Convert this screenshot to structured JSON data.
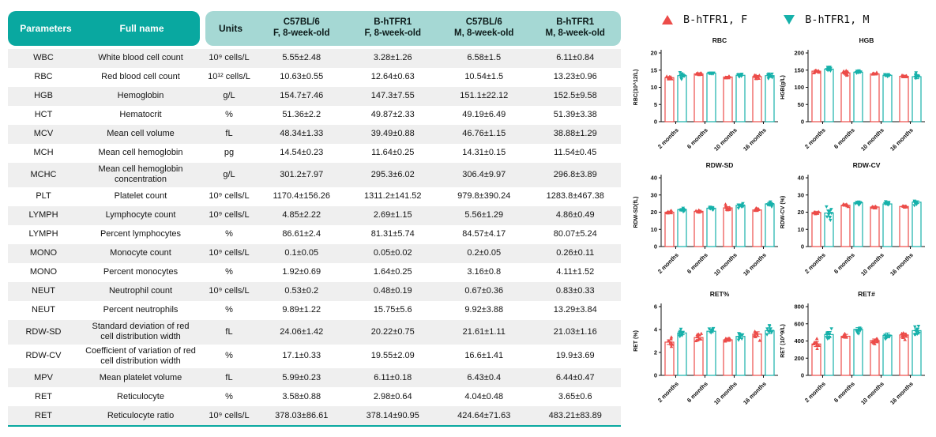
{
  "colors": {
    "header_dark_teal": "#09a8a0",
    "header_light_teal": "#a5d8d4",
    "row_stripe": "#efefef",
    "series_female_red": "#ec4c49",
    "series_male_teal": "#16b1aa"
  },
  "table": {
    "headers": {
      "parameters": "Parameters",
      "full_name": "Full name",
      "units": "Units",
      "group1": "C57BL/6\nF, 8-week-old",
      "group2": "B-hTFR1\nF, 8-week-old",
      "group3": "C57BL/6\nM, 8-week-old",
      "group4": "B-hTFR1\nM, 8-week-old"
    },
    "rows": [
      {
        "param": "WBC",
        "full": "White blood cell count",
        "units": "10⁹ cells/L",
        "values": [
          "5.55±2.48",
          "3.28±1.26",
          "6.58±1.5",
          "6.11±0.84"
        ]
      },
      {
        "param": "RBC",
        "full": "Red blood cell count",
        "units": "10¹² cells/L",
        "values": [
          "10.63±0.55",
          "12.64±0.63",
          "10.54±1.5",
          "13.23±0.96"
        ]
      },
      {
        "param": "HGB",
        "full": "Hemoglobin",
        "units": "g/L",
        "values": [
          "154.7±7.46",
          "147.3±7.55",
          "151.1±22.12",
          "152.5±9.58"
        ]
      },
      {
        "param": "HCT",
        "full": "Hematocrit",
        "units": "%",
        "values": [
          "51.36±2.2",
          "49.87±2.33",
          "49.19±6.49",
          "51.39±3.38"
        ]
      },
      {
        "param": "MCV",
        "full": "Mean cell volume",
        "units": "fL",
        "values": [
          "48.34±1.33",
          "39.49±0.88",
          "46.76±1.15",
          "38.88±1.29"
        ]
      },
      {
        "param": "MCH",
        "full": "Mean cell hemoglobin",
        "units": "pg",
        "values": [
          "14.54±0.23",
          "11.64±0.25",
          "14.31±0.15",
          "11.54±0.45"
        ]
      },
      {
        "param": "MCHC",
        "full": "Mean cell hemoglobin concentration",
        "units": "g/L",
        "values": [
          "301.2±7.97",
          "295.3±6.02",
          "306.4±9.97",
          "296.8±3.89"
        ]
      },
      {
        "param": "PLT",
        "full": "Platelet count",
        "units": "10⁹ cells/L",
        "values": [
          "1170.4±156.26",
          "1311.2±141.52",
          "979.8±390.24",
          "1283.8±467.38"
        ]
      },
      {
        "param": "LYMPH",
        "full": "Lymphocyte count",
        "units": "10⁹ cells/L",
        "values": [
          "4.85±2.22",
          "2.69±1.15",
          "5.56±1.29",
          "4.86±0.49"
        ]
      },
      {
        "param": "LYMPH",
        "full": "Percent lymphocytes",
        "units": "%",
        "values": [
          "86.61±2.4",
          "81.31±5.74",
          "84.57±4.17",
          "80.07±5.24"
        ]
      },
      {
        "param": "MONO",
        "full": "Monocyte count",
        "units": "10⁹ cells/L",
        "values": [
          "0.1±0.05",
          "0.05±0.02",
          "0.2±0.05",
          "0.26±0.11"
        ]
      },
      {
        "param": "MONO",
        "full": "Percent monocytes",
        "units": "%",
        "values": [
          "1.92±0.69",
          "1.64±0.25",
          "3.16±0.8",
          "4.11±1.52"
        ]
      },
      {
        "param": "NEUT",
        "full": "Neutrophil count",
        "units": "10⁹ cells/L",
        "values": [
          "0.53±0.2",
          "0.48±0.19",
          "0.67±0.36",
          "0.83±0.33"
        ]
      },
      {
        "param": "NEUT",
        "full": "Percent neutrophils",
        "units": "%",
        "values": [
          "9.89±1.22",
          "15.75±5.6",
          "9.92±3.88",
          "13.29±3.84"
        ]
      },
      {
        "param": "RDW-SD",
        "full": "Standard deviation of red cell distribution width",
        "units": "fL",
        "values": [
          "24.06±1.42",
          "20.22±0.75",
          "21.61±1.11",
          "21.03±1.16"
        ]
      },
      {
        "param": "RDW-CV",
        "full": "Coefficient of variation of red cell distribution width",
        "units": "%",
        "values": [
          "17.1±0.33",
          "19.55±2.09",
          "16.6±1.41",
          "19.9±3.69"
        ]
      },
      {
        "param": "MPV",
        "full": "Mean platelet volume",
        "units": "fL",
        "values": [
          "5.99±0.23",
          "6.11±0.18",
          "6.43±0.4",
          "6.44±0.47"
        ]
      },
      {
        "param": "RET",
        "full": "Reticulocyte",
        "units": "%",
        "values": [
          "3.58±0.88",
          "2.98±0.64",
          "4.04±0.48",
          "3.65±0.6"
        ]
      },
      {
        "param": "RET",
        "full": "Reticulocyte ratio",
        "units": "10⁹ cells/L",
        "values": [
          "378.03±86.61",
          "378.14±90.95",
          "424.64±71.63",
          "483.21±83.89"
        ]
      }
    ]
  },
  "legend": {
    "items": [
      {
        "label": "B-hTFR1, F",
        "marker": "triangle-up",
        "color": "#ec4c49"
      },
      {
        "label": "B-hTFR1, M",
        "marker": "triangle-down",
        "color": "#16b1aa"
      }
    ]
  },
  "chart_data": [
    {
      "type": "bar",
      "title": "RBC",
      "ylabel": "RBC(10^12/L)",
      "ylim": [
        0,
        20
      ],
      "yticks": [
        0,
        5,
        10,
        15,
        20
      ],
      "categories": [
        "2 months",
        "6 months",
        "10 months",
        "16 months"
      ],
      "legend_position": "top",
      "grid": false,
      "series": [
        {
          "name": "B-hTFR1, F",
          "color": "#ec4c49",
          "marker": "triangle-up",
          "means": [
            12.8,
            13.9,
            13.0,
            13.1
          ],
          "errors": [
            0.25,
            0.3,
            0.2,
            0.35
          ]
        },
        {
          "name": "B-hTFR1, M",
          "color": "#16b1aa",
          "marker": "triangle-down",
          "means": [
            13.4,
            14.1,
            13.5,
            13.4
          ],
          "errors": [
            0.4,
            0.15,
            0.2,
            0.5
          ]
        }
      ]
    },
    {
      "type": "bar",
      "title": "HGB",
      "ylabel": "HGB(g/L)",
      "ylim": [
        0,
        200
      ],
      "yticks": [
        0,
        50,
        100,
        150,
        200
      ],
      "categories": [
        "2 months",
        "6 months",
        "10 months",
        "16 months"
      ],
      "legend_position": "top",
      "grid": false,
      "series": [
        {
          "name": "B-hTFR1, F",
          "color": "#ec4c49",
          "marker": "triangle-up",
          "means": [
            147,
            142,
            139,
            132
          ],
          "errors": [
            3,
            4,
            2,
            3
          ]
        },
        {
          "name": "B-hTFR1, M",
          "color": "#16b1aa",
          "marker": "triangle-down",
          "means": [
            153,
            144,
            135,
            131
          ],
          "errors": [
            4,
            3,
            2,
            6
          ]
        }
      ]
    },
    {
      "type": "bar",
      "title": "RDW-SD",
      "ylabel": "RDW-SD(fL)",
      "ylim": [
        0,
        40
      ],
      "yticks": [
        0,
        10,
        20,
        30,
        40
      ],
      "categories": [
        "2 months",
        "6 months",
        "10 months",
        "16 months"
      ],
      "legend_position": "top",
      "grid": false,
      "series": [
        {
          "name": "B-hTFR1, F",
          "color": "#ec4c49",
          "marker": "triangle-up",
          "means": [
            20.0,
            20.5,
            22.5,
            21.3
          ],
          "errors": [
            0.4,
            0.3,
            0.7,
            0.4
          ]
        },
        {
          "name": "B-hTFR1, M",
          "color": "#16b1aa",
          "marker": "triangle-down",
          "means": [
            21.5,
            22.3,
            24.0,
            24.8
          ],
          "errors": [
            0.5,
            0.6,
            0.6,
            0.8
          ]
        }
      ]
    },
    {
      "type": "bar",
      "title": "RDW-CV",
      "ylabel": "RDW-CV (%)",
      "ylim": [
        0,
        40
      ],
      "yticks": [
        0,
        10,
        20,
        30,
        40
      ],
      "categories": [
        "2 months",
        "6 months",
        "10 months",
        "16 months"
      ],
      "legend_position": "top",
      "grid": false,
      "series": [
        {
          "name": "B-hTFR1, F",
          "color": "#ec4c49",
          "marker": "triangle-up",
          "means": [
            19.8,
            24.0,
            23.0,
            23.3
          ],
          "errors": [
            0.5,
            0.4,
            0.3,
            0.3
          ]
        },
        {
          "name": "B-hTFR1, M",
          "color": "#16b1aa",
          "marker": "triangle-down",
          "means": [
            19.5,
            25.5,
            24.8,
            25.8
          ],
          "errors": [
            1.8,
            0.6,
            0.5,
            0.8
          ]
        }
      ]
    },
    {
      "type": "bar",
      "title": "RET%",
      "ylabel": "RET (%)",
      "ylim": [
        0,
        6
      ],
      "yticks": [
        0,
        2,
        4,
        6
      ],
      "categories": [
        "2 months",
        "6 months",
        "10 months",
        "16 months"
      ],
      "legend_position": "top",
      "grid": false,
      "series": [
        {
          "name": "B-hTFR1, F",
          "color": "#ec4c49",
          "marker": "triangle-up",
          "means": [
            2.9,
            3.3,
            3.1,
            3.6
          ],
          "errors": [
            0.2,
            0.18,
            0.12,
            0.2
          ]
        },
        {
          "name": "B-hTFR1, M",
          "color": "#16b1aa",
          "marker": "triangle-down",
          "means": [
            3.7,
            3.85,
            3.4,
            3.9
          ],
          "errors": [
            0.15,
            0.12,
            0.18,
            0.25
          ]
        }
      ]
    },
    {
      "type": "bar",
      "title": "RET#",
      "ylabel": "RET (10^9/L)",
      "ylim": [
        0,
        800
      ],
      "yticks": [
        0,
        200,
        400,
        600,
        800
      ],
      "categories": [
        "2 months",
        "6 months",
        "10 months",
        "16 months"
      ],
      "legend_position": "top",
      "grid": false,
      "series": [
        {
          "name": "B-hTFR1, F",
          "color": "#ec4c49",
          "marker": "triangle-up",
          "means": [
            365,
            455,
            405,
            470
          ],
          "errors": [
            30,
            22,
            18,
            22
          ]
        },
        {
          "name": "B-hTFR1, M",
          "color": "#16b1aa",
          "marker": "triangle-down",
          "means": [
            475,
            535,
            465,
            520
          ],
          "errors": [
            35,
            20,
            28,
            30
          ]
        }
      ]
    }
  ]
}
